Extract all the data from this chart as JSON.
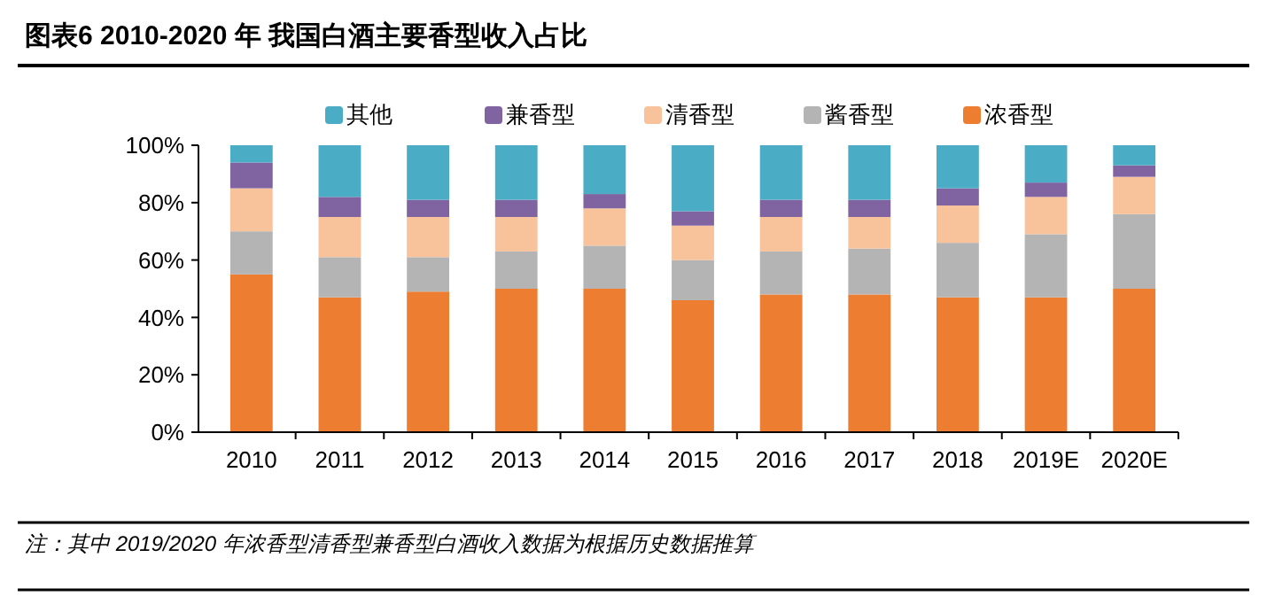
{
  "chart_data": {
    "type": "bar",
    "stacked": true,
    "title": "图表6      2010-2020 年 我国白酒主要香型收入占比",
    "categories": [
      "2010",
      "2011",
      "2012",
      "2013",
      "2014",
      "2015",
      "2016",
      "2017",
      "2018",
      "2019E",
      "2020E"
    ],
    "series": [
      {
        "name": "浓香型",
        "color": "#ed7d31",
        "values": [
          55,
          47,
          49,
          50,
          50,
          46,
          48,
          48,
          47,
          47,
          50
        ]
      },
      {
        "name": "酱香型",
        "color": "#b4b4b4",
        "values": [
          15,
          14,
          12,
          13,
          15,
          14,
          15,
          16,
          19,
          22,
          26
        ]
      },
      {
        "name": "清香型",
        "color": "#f8c29b",
        "values": [
          15,
          14,
          14,
          12,
          13,
          12,
          12,
          11,
          13,
          13,
          13
        ]
      },
      {
        "name": "兼香型",
        "color": "#8064a2",
        "values": [
          9,
          7,
          6,
          6,
          5,
          5,
          6,
          6,
          6,
          5,
          4
        ]
      },
      {
        "name": "其他",
        "color": "#4bacc6",
        "values": [
          6,
          18,
          19,
          19,
          17,
          23,
          19,
          19,
          15,
          13,
          7
        ]
      }
    ],
    "ylim": [
      0,
      100
    ],
    "yticks": [
      {
        "value": 0,
        "label": "0%"
      },
      {
        "value": 20,
        "label": "20%"
      },
      {
        "value": 40,
        "label": "40%"
      },
      {
        "value": 60,
        "label": "60%"
      },
      {
        "value": 80,
        "label": "80%"
      },
      {
        "value": 100,
        "label": "100%"
      }
    ],
    "grid": false,
    "legend": "top",
    "annotations": [
      "注：其中 2019/2020 年浓香型清香型兼香型白酒收入数据为根据历史数据推算"
    ]
  }
}
